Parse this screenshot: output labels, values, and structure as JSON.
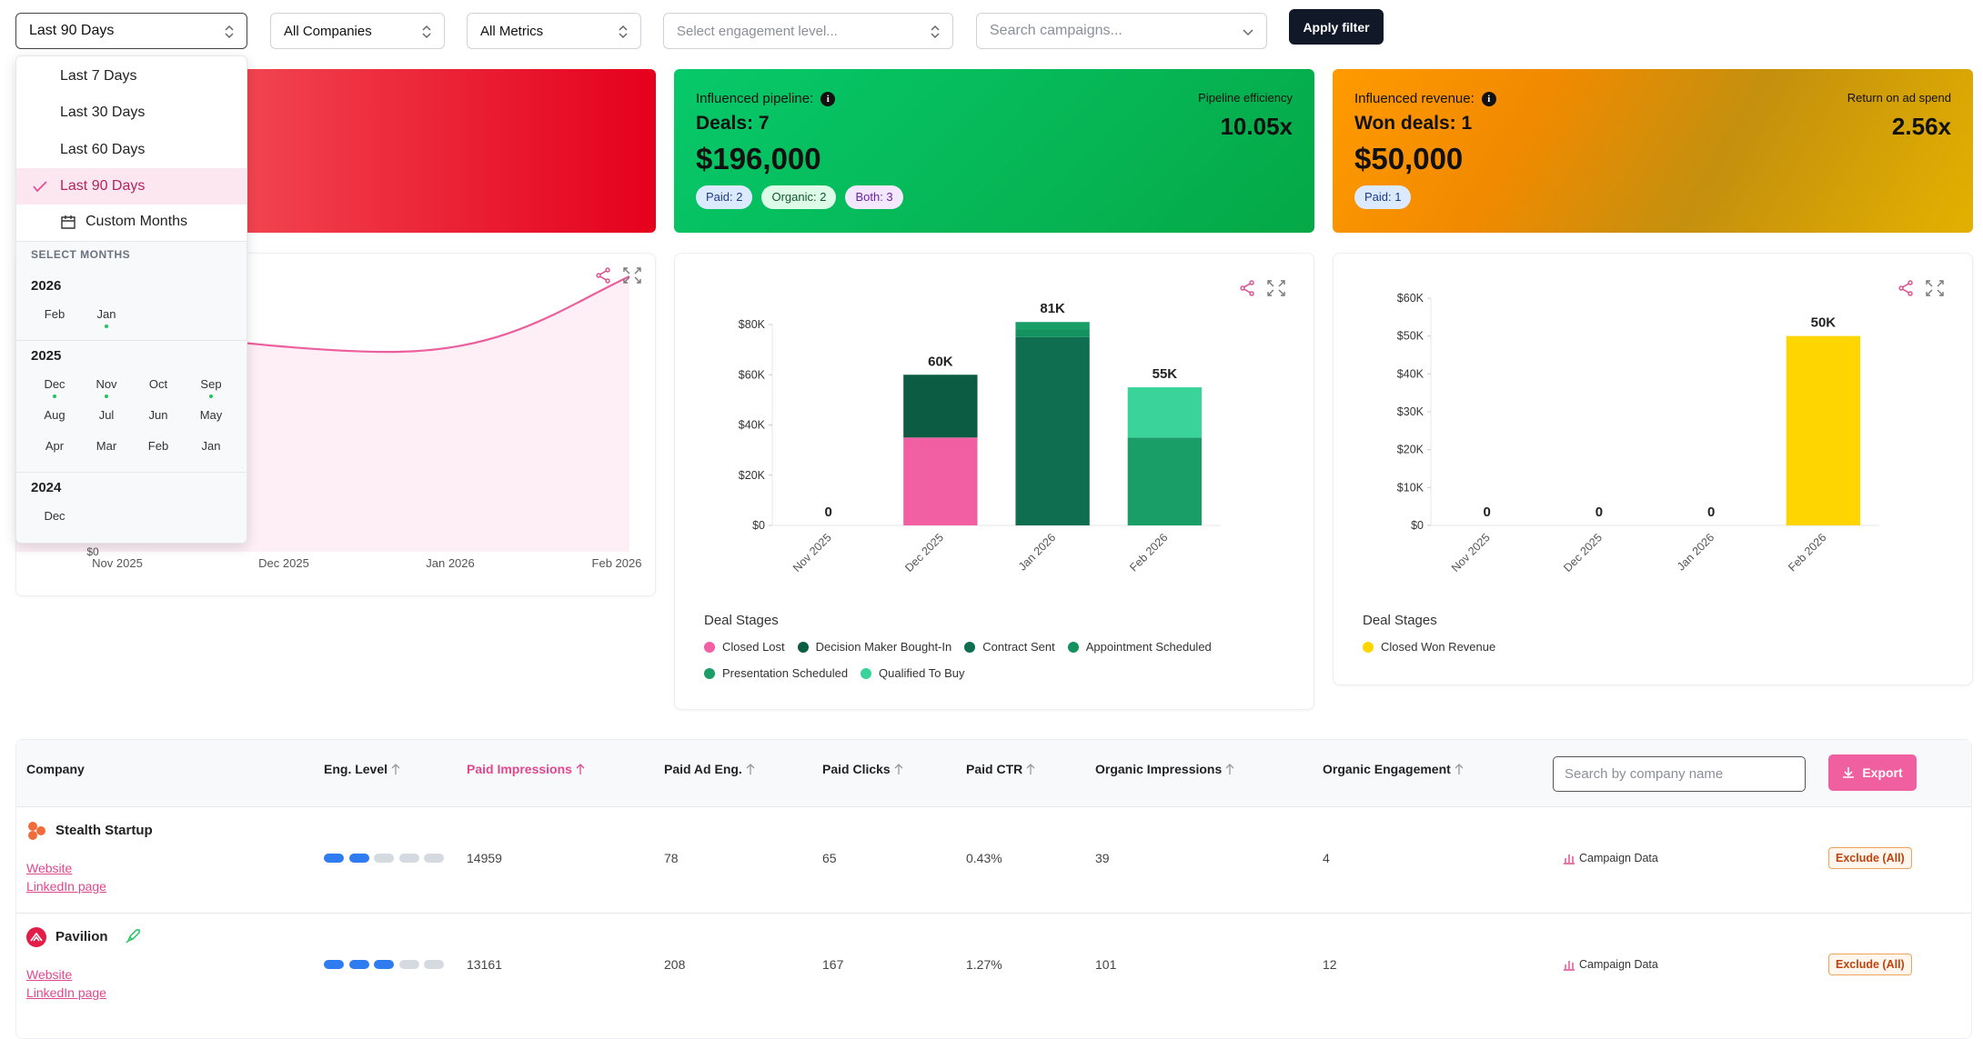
{
  "filters": {
    "period": "Last 90 Days",
    "companies": "All Companies",
    "metrics": "All Metrics",
    "engagement_placeholder": "Select engagement level...",
    "search_placeholder": "Search campaigns...",
    "apply": "Apply filter"
  },
  "dropdown": {
    "options": [
      "Last 7 Days",
      "Last 30 Days",
      "Last 60 Days",
      "Last 90 Days"
    ],
    "selected": 3,
    "custom": "Custom Months",
    "select_months": "SELECT MONTHS",
    "years": [
      {
        "year": "2026",
        "months": [
          "Feb",
          "Jan"
        ],
        "active": [
          false,
          true
        ]
      },
      {
        "year": "2025",
        "months": [
          "Dec",
          "Nov",
          "Oct",
          "Sep",
          "Aug",
          "Jul",
          "Jun",
          "May",
          "Apr",
          "Mar",
          "Feb",
          "Jan"
        ],
        "active": [
          true,
          true,
          false,
          true,
          false,
          false,
          false,
          false,
          false,
          false,
          false,
          false
        ]
      },
      {
        "year": "2024",
        "months": [
          "Dec"
        ],
        "active": [
          false
        ]
      }
    ]
  },
  "cards": [
    {
      "label": "Influenced pipeline:",
      "deals": "Deals: 7",
      "amount": "$196,000",
      "metric_label": "Pipeline efficiency",
      "metric": "10.05x",
      "badges": [
        "Paid: 2",
        "Organic: 2",
        "Both: 3"
      ]
    },
    {
      "label": "Influenced revenue:",
      "deals": "Won deals: 1",
      "amount": "$50,000",
      "metric_label": "Return on ad spend",
      "metric": "2.56x",
      "badges": [
        "Paid: 1"
      ]
    }
  ],
  "chart_data": [
    {
      "type": "line",
      "categories": [
        "Nov 2025",
        "Dec 2025",
        "Jan 2026",
        "Feb 2026"
      ],
      "yticks": [
        {
          "value": 0,
          "label": "$0"
        }
      ],
      "color": "#ec5f9f"
    },
    {
      "type": "bar",
      "stacked": true,
      "categories": [
        "Nov 2025",
        "Dec 2025",
        "Jan 2026",
        "Feb 2026"
      ],
      "ylim": [
        0,
        80000
      ],
      "yticks": [
        {
          "value": 0,
          "label": "$0"
        },
        {
          "value": 20000,
          "label": "$20K"
        },
        {
          "value": 40000,
          "label": "$40K"
        },
        {
          "value": 60000,
          "label": "$60K"
        },
        {
          "value": 80000,
          "label": "$80K"
        }
      ],
      "series": [
        {
          "name": "Closed Lost",
          "color": "#f35fa3",
          "values": [
            0,
            35000,
            0,
            0
          ]
        },
        {
          "name": "Decision Maker Bought-In",
          "color": "#0b5c43",
          "values": [
            0,
            25000,
            0,
            0
          ]
        },
        {
          "name": "Contract Sent",
          "color": "#0e6e4f",
          "values": [
            0,
            0,
            75000,
            0
          ]
        },
        {
          "name": "Appointment Scheduled",
          "color": "#13925f",
          "values": [
            0,
            0,
            3000,
            0
          ]
        },
        {
          "name": "Presentation Scheduled",
          "color": "#1a9e67",
          "values": [
            0,
            0,
            3000,
            35000
          ]
        },
        {
          "name": "Qualified To Buy",
          "color": "#3ad39a",
          "values": [
            0,
            0,
            0,
            20000
          ]
        }
      ],
      "totals": [
        0,
        60000,
        81000,
        55000
      ],
      "total_labels": [
        "0",
        "60K",
        "81K",
        "55K"
      ],
      "legend_title": "Deal Stages"
    },
    {
      "type": "bar",
      "categories": [
        "Nov 2025",
        "Dec 2025",
        "Jan 2026",
        "Feb 2026"
      ],
      "ylim": [
        0,
        60000
      ],
      "yticks": [
        {
          "value": 0,
          "label": "$0"
        },
        {
          "value": 10000,
          "label": "$10K"
        },
        {
          "value": 20000,
          "label": "$20K"
        },
        {
          "value": 30000,
          "label": "$30K"
        },
        {
          "value": 40000,
          "label": "$40K"
        },
        {
          "value": 50000,
          "label": "$50K"
        },
        {
          "value": 60000,
          "label": "$60K"
        }
      ],
      "series": [
        {
          "name": "Closed Won Revenue",
          "color": "#ffd500",
          "values": [
            0,
            0,
            0,
            50000
          ],
          "value_labels": [
            "0",
            "0",
            "0",
            "50K"
          ]
        }
      ],
      "legend_title": "Deal Stages"
    }
  ],
  "table": {
    "columns": [
      "Company",
      "Eng. Level",
      "Paid Impressions",
      "Paid Ad Eng.",
      "Paid Clicks",
      "Paid CTR",
      "Organic Impressions",
      "Organic Engagement"
    ],
    "sorted_column": 2,
    "search_placeholder": "Search by company name",
    "export": "Export",
    "rows": [
      {
        "name": "Stealth Startup",
        "website": "Website",
        "linkedin": "LinkedIn page",
        "eng_level": 2,
        "cells": [
          14959,
          78,
          65,
          "0.43%",
          39,
          4
        ],
        "campaign": "Campaign Data",
        "exclude": "Exclude (All)"
      },
      {
        "name": "Pavilion",
        "website": "Website",
        "linkedin": "LinkedIn page",
        "eng_level": 3,
        "cells": [
          13161,
          208,
          167,
          "1.27%",
          101,
          12
        ],
        "campaign": "Campaign Data",
        "exclude": "Exclude (All)"
      }
    ]
  }
}
